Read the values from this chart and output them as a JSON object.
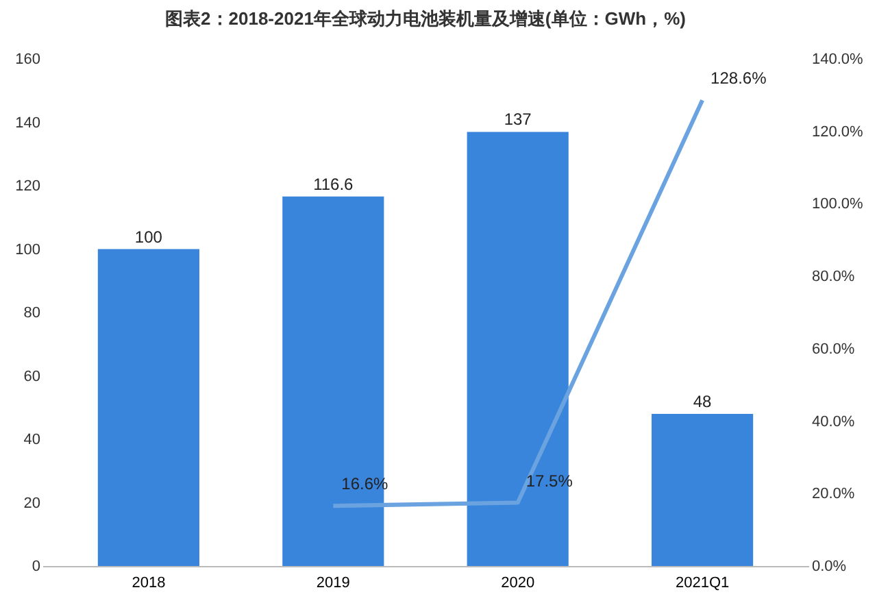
{
  "chart_data": {
    "type": "bar",
    "title": "图表2：2018-2021年全球动力电池装机量及增速(单位：GWh，%)",
    "categories": [
      "2018",
      "2019",
      "2020",
      "2021Q1"
    ],
    "series": [
      {
        "color": "#3a85dc",
        "values": [
          100,
          116.6,
          137,
          48
        ],
        "value_labels": [
          "100",
          "116.6",
          "137",
          "48"
        ]
      },
      {
        "type": "line",
        "axis": "y2",
        "color": "#6aa3e0",
        "values": [
          null,
          16.6,
          17.5,
          128.6
        ],
        "value_labels": [
          null,
          "16.6%",
          "17.5%",
          "128.6%"
        ]
      }
    ],
    "ylim": [
      0,
      160
    ],
    "yticks": [
      0,
      20,
      40,
      60,
      80,
      100,
      120,
      140,
      160
    ],
    "y2lim": [
      0,
      140
    ],
    "y2ticks": [
      {
        "value": 0,
        "label": "0.0%"
      },
      {
        "value": 20,
        "label": "20.0%"
      },
      {
        "value": 40,
        "label": "40.0%"
      },
      {
        "value": 60,
        "label": "60.0%"
      },
      {
        "value": 80,
        "label": "80.0%"
      },
      {
        "value": 100,
        "label": "100.0%"
      },
      {
        "value": 120,
        "label": "120.0%"
      },
      {
        "value": 140,
        "label": "140.0%"
      }
    ],
    "grid": false,
    "marker": "none",
    "line_style": "solid"
  }
}
